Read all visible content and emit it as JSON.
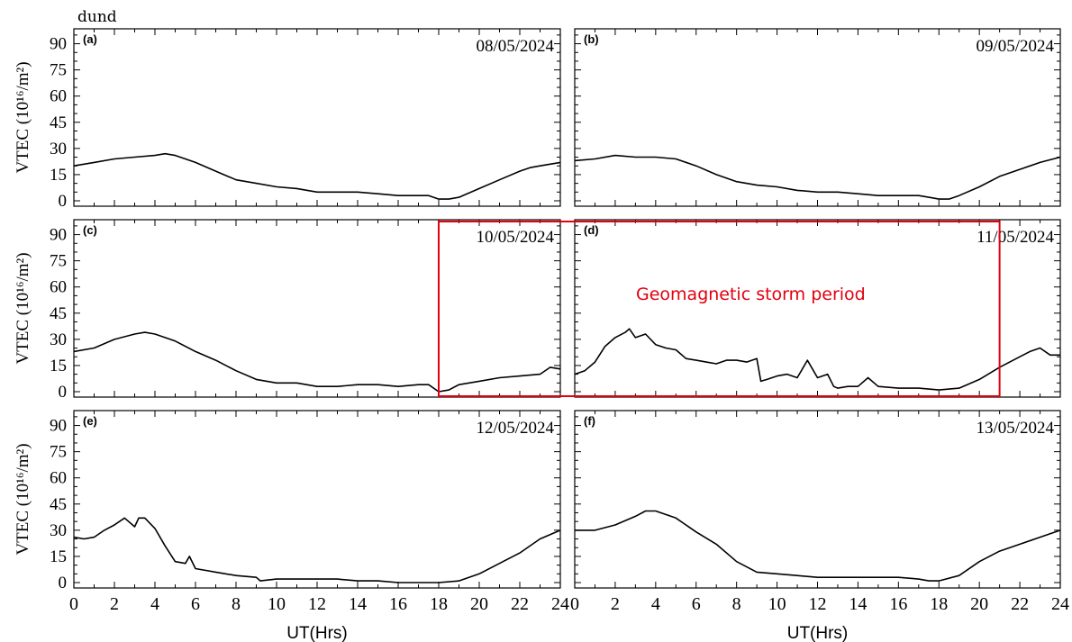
{
  "station": "dund",
  "ylabel": "VTEC (10¹⁶/m²)",
  "xlabel": "UT(Hrs)",
  "colors": {
    "line": "#000000",
    "storm_box": "#e3000f",
    "storm_text": "#e3000f"
  },
  "annotation": {
    "text": "Geomagnetic storm period",
    "x_start_panel": "c",
    "x_start": 18,
    "x_end_panel": "d",
    "x_end": 21
  },
  "chart_data": [
    {
      "type": "line",
      "panel": "(a)",
      "title": "08/05/2024",
      "xlim": [
        0,
        24
      ],
      "ylim": [
        0,
        97
      ],
      "xticks": [
        0,
        1,
        2,
        3,
        4,
        5,
        6,
        7,
        8,
        9,
        10,
        11,
        12,
        13,
        14,
        15,
        16,
        17,
        18,
        19,
        20,
        21,
        22,
        23,
        24
      ],
      "yticks": [
        0,
        15,
        30,
        45,
        60,
        75,
        90
      ],
      "x": [
        0,
        1,
        2,
        3,
        4,
        4.5,
        5,
        6,
        7,
        8,
        9,
        10,
        11,
        12,
        13,
        14,
        15,
        16,
        17,
        17.5,
        18,
        18.5,
        19,
        20,
        21,
        22,
        22.5,
        23,
        24
      ],
      "y": [
        20,
        22,
        24,
        25,
        26,
        27,
        26,
        22,
        17,
        12,
        10,
        8,
        7,
        5,
        5,
        5,
        4,
        3,
        3,
        3,
        1,
        1,
        2,
        7,
        12,
        17,
        19,
        20,
        22
      ]
    },
    {
      "type": "line",
      "panel": "(b)",
      "title": "09/05/2024",
      "xlim": [
        0,
        24
      ],
      "ylim": [
        0,
        97
      ],
      "xticks": [
        0,
        1,
        2,
        3,
        4,
        5,
        6,
        7,
        8,
        9,
        10,
        11,
        12,
        13,
        14,
        15,
        16,
        17,
        18,
        19,
        20,
        21,
        22,
        23,
        24
      ],
      "yticks": [
        0,
        15,
        30,
        45,
        60,
        75,
        90
      ],
      "x": [
        0,
        1,
        2,
        3,
        4,
        5,
        6,
        7,
        8,
        9,
        10,
        11,
        12,
        13,
        14,
        15,
        16,
        17,
        17.5,
        18,
        18.5,
        19,
        20,
        21,
        22,
        23,
        24
      ],
      "y": [
        23,
        24,
        26,
        25,
        25,
        24,
        20,
        15,
        11,
        9,
        8,
        6,
        5,
        5,
        4,
        3,
        3,
        3,
        2,
        1,
        1,
        3,
        8,
        14,
        18,
        22,
        25
      ]
    },
    {
      "type": "line",
      "panel": "(c)",
      "title": "10/05/2024",
      "xlim": [
        0,
        24
      ],
      "ylim": [
        0,
        97
      ],
      "xticks": [
        0,
        1,
        2,
        3,
        4,
        5,
        6,
        7,
        8,
        9,
        10,
        11,
        12,
        13,
        14,
        15,
        16,
        17,
        18,
        19,
        20,
        21,
        22,
        23,
        24
      ],
      "yticks": [
        0,
        15,
        30,
        45,
        60,
        75,
        90
      ],
      "x": [
        0,
        1,
        2,
        3,
        3.5,
        4,
        5,
        6,
        7,
        8,
        9,
        10,
        11,
        12,
        13,
        14,
        15,
        16,
        17,
        17.5,
        18,
        18.5,
        19,
        20,
        21,
        22,
        23,
        23.5,
        24
      ],
      "y": [
        23,
        25,
        30,
        33,
        34,
        33,
        29,
        23,
        18,
        12,
        7,
        5,
        5,
        3,
        3,
        4,
        4,
        3,
        4,
        4,
        0,
        1,
        4,
        6,
        8,
        9,
        10,
        14,
        13
      ]
    },
    {
      "type": "line",
      "panel": "(d)",
      "title": "11/05/2024",
      "xlim": [
        0,
        24
      ],
      "ylim": [
        0,
        97
      ],
      "xticks": [
        0,
        1,
        2,
        3,
        4,
        5,
        6,
        7,
        8,
        9,
        10,
        11,
        12,
        13,
        14,
        15,
        16,
        17,
        18,
        19,
        20,
        21,
        22,
        23,
        24
      ],
      "yticks": [
        0,
        15,
        30,
        45,
        60,
        75,
        90
      ],
      "x": [
        0,
        0.5,
        1,
        1.5,
        2,
        2.5,
        2.7,
        3,
        3.5,
        4,
        4.5,
        5,
        5.5,
        6,
        6.5,
        7,
        7.5,
        8,
        8.5,
        9,
        9.2,
        9.5,
        10,
        10.5,
        11,
        11.5,
        11.8,
        12,
        12.5,
        12.8,
        13,
        13.5,
        14,
        14.5,
        15,
        16,
        17,
        18,
        19,
        20,
        21,
        22,
        22.5,
        23,
        23.5,
        24
      ],
      "y": [
        10,
        12,
        17,
        26,
        31,
        34,
        36,
        31,
        33,
        27,
        25,
        24,
        19,
        18,
        17,
        16,
        18,
        18,
        17,
        19,
        6,
        7,
        9,
        10,
        8,
        18,
        12,
        8,
        10,
        3,
        2,
        3,
        3,
        8,
        3,
        2,
        2,
        1,
        2,
        7,
        14,
        20,
        23,
        25,
        21,
        21
      ]
    },
    {
      "type": "line",
      "panel": "(e)",
      "title": "12/05/2024",
      "xlim": [
        0,
        24
      ],
      "ylim": [
        0,
        97
      ],
      "xticks": [
        0,
        1,
        2,
        3,
        4,
        5,
        6,
        7,
        8,
        9,
        10,
        11,
        12,
        13,
        14,
        15,
        16,
        17,
        18,
        19,
        20,
        21,
        22,
        23,
        24
      ],
      "yticks": [
        0,
        15,
        30,
        45,
        60,
        75,
        90
      ],
      "x": [
        0,
        0.5,
        1,
        1.5,
        2,
        2.5,
        3,
        3.2,
        3.5,
        4,
        4.5,
        5,
        5.5,
        5.7,
        6,
        7,
        8,
        9,
        9.2,
        10,
        11,
        12,
        13,
        14,
        15,
        16,
        17,
        18,
        19,
        20,
        21,
        22,
        23,
        24
      ],
      "y": [
        26,
        25,
        26,
        30,
        33,
        37,
        32,
        37,
        37,
        31,
        21,
        12,
        11,
        15,
        8,
        6,
        4,
        3,
        1,
        2,
        2,
        2,
        2,
        1,
        1,
        0,
        0,
        0,
        1,
        5,
        11,
        17,
        25,
        30
      ]
    },
    {
      "type": "line",
      "panel": "(f)",
      "title": "13/05/2024",
      "xlim": [
        0,
        24
      ],
      "ylim": [
        0,
        97
      ],
      "xticks": [
        0,
        1,
        2,
        3,
        4,
        5,
        6,
        7,
        8,
        9,
        10,
        11,
        12,
        13,
        14,
        15,
        16,
        17,
        18,
        19,
        20,
        21,
        22,
        23,
        24
      ],
      "yticks": [
        0,
        15,
        30,
        45,
        60,
        75,
        90
      ],
      "x": [
        0,
        1,
        2,
        3,
        3.5,
        4,
        5,
        6,
        7,
        8,
        9,
        10,
        11,
        12,
        13,
        14,
        15,
        16,
        17,
        17.5,
        18,
        19,
        20,
        21,
        22,
        23,
        24
      ],
      "y": [
        30,
        30,
        33,
        38,
        41,
        41,
        37,
        29,
        22,
        12,
        6,
        5,
        4,
        3,
        3,
        3,
        3,
        3,
        2,
        1,
        1,
        4,
        12,
        18,
        22,
        26,
        30
      ]
    }
  ]
}
